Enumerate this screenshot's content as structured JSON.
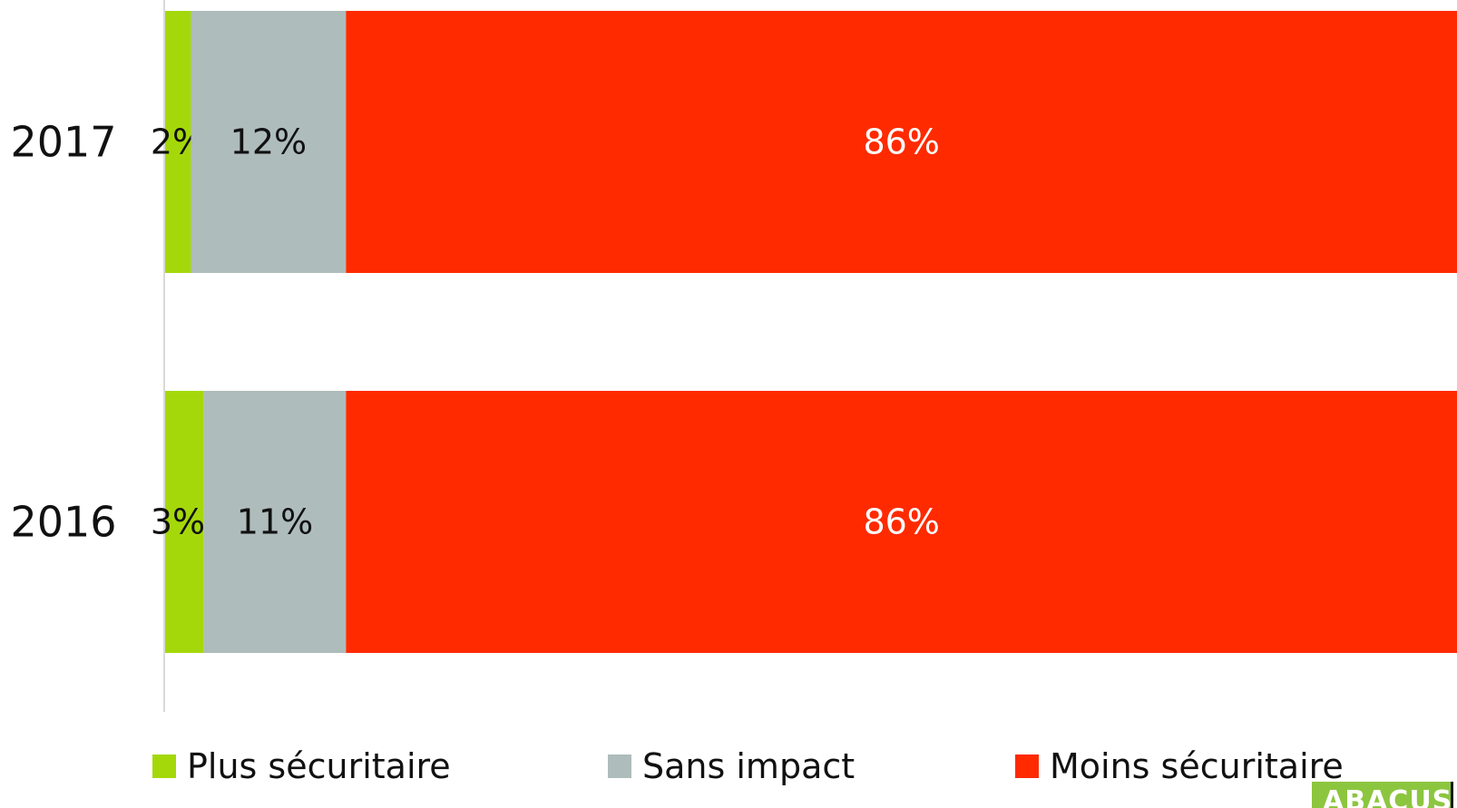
{
  "chart_data": {
    "type": "bar",
    "orientation": "horizontal",
    "stacked": true,
    "categories": [
      "2017",
      "2016"
    ],
    "series": [
      {
        "name": "Plus sécuritaire",
        "values": [
          2,
          3
        ],
        "labels": [
          "2%",
          "3%"
        ],
        "color": "#a5d80a",
        "label_color": "#111111"
      },
      {
        "name": "Sans impact",
        "values": [
          12,
          11
        ],
        "labels": [
          "12%",
          "11%"
        ],
        "color": "#aebcbb",
        "label_color": "#111111"
      },
      {
        "name": "Moins sécuritaire",
        "values": [
          86,
          86
        ],
        "labels": [
          "86%",
          "86%"
        ],
        "color": "#ff2a00",
        "label_color": "#ffffff"
      }
    ],
    "xlim": [
      0,
      100
    ],
    "grid": false,
    "legend_position": "bottom"
  },
  "colors": {
    "plus": "#a5d80a",
    "sans": "#aebcbb",
    "moins": "#ff2a00",
    "axis": "#d9d9d9",
    "logo_bg": "#8cc63f"
  },
  "legend": {
    "items": [
      {
        "label": "Plus sécuritaire",
        "color": "#a5d80a"
      },
      {
        "label": "Sans impact",
        "color": "#aebcbb"
      },
      {
        "label": "Moins sécuritaire",
        "color": "#ff2a00"
      }
    ]
  },
  "logo": {
    "text": "ABACUS"
  }
}
